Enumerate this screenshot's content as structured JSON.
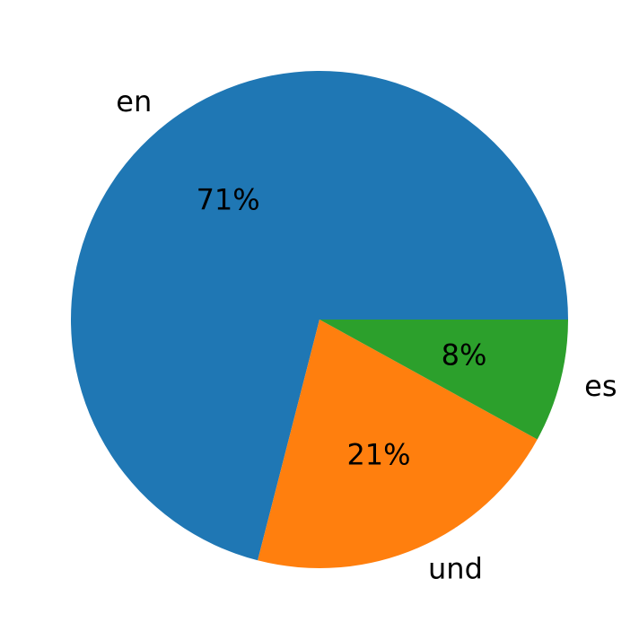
{
  "chart_data": {
    "type": "pie",
    "categories": [
      "en",
      "und",
      "es"
    ],
    "values": [
      71,
      21,
      8
    ],
    "value_labels": [
      "71%",
      "21%",
      "8%"
    ],
    "colors": [
      "#1f77b4",
      "#ff7f0e",
      "#2ca02c"
    ]
  }
}
